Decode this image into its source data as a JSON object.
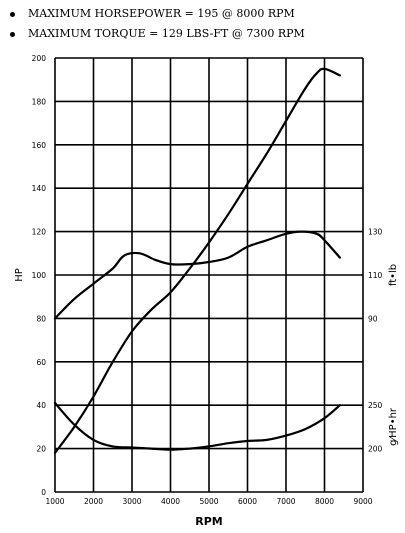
{
  "bullets": [
    "MAXIMUM HORSEPOWER = 195 @ 8000 RPM",
    "MAXIMUM TORQUE = 129 LBS-FT @ 7300 RPM"
  ],
  "chart_data": {
    "type": "line",
    "xlabel": "RPM",
    "ylabel": "HP",
    "x_ticks": [
      "1000",
      "2000",
      "3000",
      "4000",
      "5000",
      "6000",
      "7000",
      "8000",
      "9000"
    ],
    "y_ticks": [
      "0",
      "20",
      "40",
      "60",
      "80",
      "100",
      "120",
      "140",
      "160",
      "180",
      "200"
    ],
    "xlim": [
      1000,
      9000
    ],
    "ylim": [
      0,
      200
    ],
    "grid": true,
    "right_axes": [
      {
        "label": "ft•lb",
        "ticks": [
          {
            "value": 90,
            "at_hp": 80,
            "label": "90"
          },
          {
            "value": 110,
            "at_hp": 100,
            "label": "110"
          },
          {
            "value": 130,
            "at_hp": 120,
            "label": "130"
          }
        ]
      },
      {
        "label": "g⁄HP•hr",
        "ticks": [
          {
            "value": 200,
            "at_hp": 20,
            "label": "200"
          },
          {
            "value": 250,
            "at_hp": 40,
            "label": "250"
          }
        ]
      }
    ],
    "series": [
      {
        "x": [
          1000,
          1500,
          2000,
          2500,
          3000,
          3500,
          4000,
          4500,
          5000,
          5500,
          6000,
          6500,
          7000,
          7500,
          7800,
          8000,
          8400
        ],
        "y": [
          18,
          30,
          44,
          60,
          74,
          84,
          92,
          103,
          115,
          128,
          142,
          156,
          171,
          186,
          193,
          195,
          192
        ]
      },
      {
        "x": [
          1000,
          1500,
          2000,
          2500,
          2800,
          3200,
          3600,
          4000,
          4500,
          5000,
          5500,
          6000,
          6500,
          7000,
          7400,
          7800,
          8000,
          8400
        ],
        "y": [
          80,
          89,
          96,
          103,
          109,
          110,
          107,
          105,
          105,
          106,
          108,
          113,
          116,
          119,
          120,
          119,
          116,
          108
        ]
      },
      {
        "x": [
          1000,
          1500,
          2000,
          2500,
          3000,
          3500,
          4000,
          4500,
          5000,
          5500,
          6000,
          6500,
          7000,
          7500,
          8000,
          8400
        ],
        "y": [
          41,
          31,
          24,
          21,
          20.5,
          20,
          19.5,
          20,
          21,
          22.5,
          23.5,
          24,
          26,
          29,
          34,
          40
        ]
      }
    ]
  }
}
